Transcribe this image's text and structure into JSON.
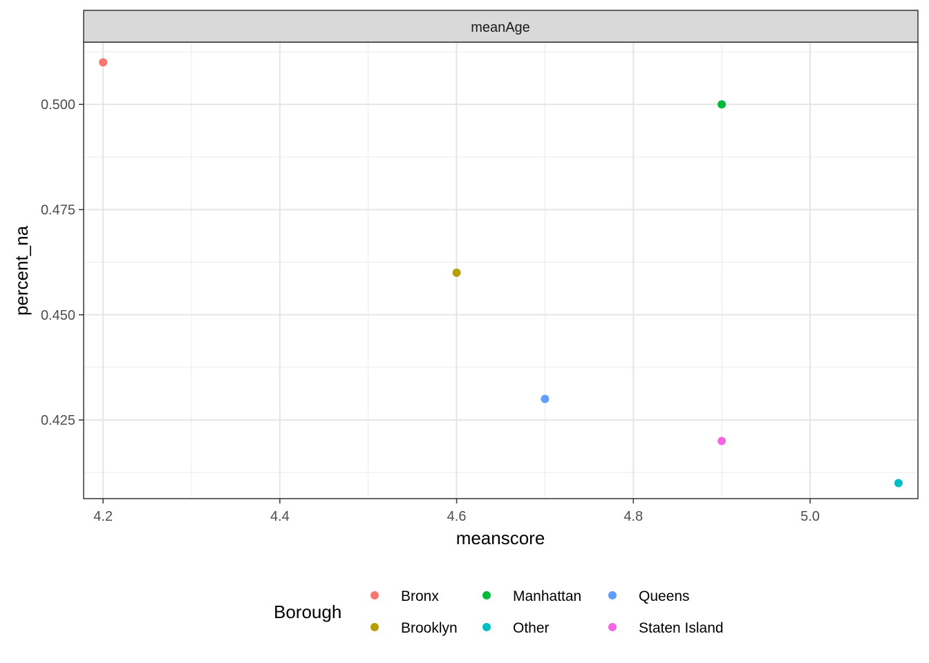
{
  "chart_data": {
    "type": "scatter",
    "facet_label": "meanAge",
    "xlabel": "meanscore",
    "ylabel": "percent_na",
    "xlim": [
      4.178,
      5.122
    ],
    "ylim": [
      0.4063,
      0.5148
    ],
    "x_ticks": [
      "4.2",
      "4.4",
      "4.6",
      "4.8",
      "5.0"
    ],
    "x_tick_values": [
      4.2,
      4.4,
      4.6,
      4.8,
      5.0
    ],
    "y_ticks": [
      "0.425",
      "0.450",
      "0.475",
      "0.500"
    ],
    "y_tick_values": [
      0.425,
      0.45,
      0.475,
      0.5
    ],
    "grid": true,
    "legend_position": "bottom",
    "legend_title": "Borough",
    "series": [
      {
        "name": "Bronx",
        "color": "#F8766D",
        "x": [
          4.2
        ],
        "y": [
          0.51
        ]
      },
      {
        "name": "Brooklyn",
        "color": "#B79F00",
        "x": [
          4.6
        ],
        "y": [
          0.46
        ]
      },
      {
        "name": "Manhattan",
        "color": "#00BA38",
        "x": [
          4.9
        ],
        "y": [
          0.5
        ]
      },
      {
        "name": "Other",
        "color": "#00BFC4",
        "x": [
          5.1
        ],
        "y": [
          0.41
        ]
      },
      {
        "name": "Queens",
        "color": "#619CFF",
        "x": [
          4.7
        ],
        "y": [
          0.43
        ]
      },
      {
        "name": "Staten Island",
        "color": "#F564E3",
        "x": [
          4.9
        ],
        "y": [
          0.42
        ]
      }
    ]
  }
}
